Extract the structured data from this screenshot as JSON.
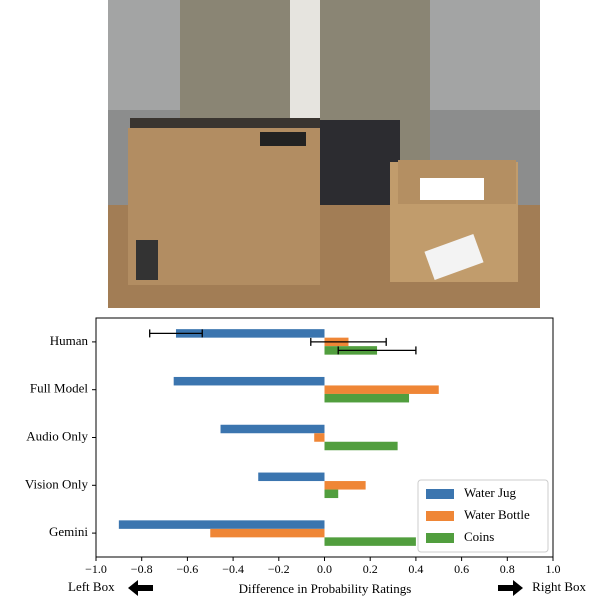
{
  "chart_data": {
    "type": "hbar",
    "categories": [
      "Human",
      "Full Model",
      "Audio Only",
      "Vision Only",
      "Gemini"
    ],
    "series": [
      {
        "name": "Water Jug",
        "color": "#3b75af",
        "values": [
          -0.65,
          -0.66,
          -0.455,
          -0.29,
          -0.9
        ],
        "errors": [
          0.115,
          null,
          null,
          null,
          null
        ]
      },
      {
        "name": "Water Bottle",
        "color": "#ef8636",
        "values": [
          0.105,
          0.5,
          -0.045,
          0.18,
          -0.5
        ],
        "errors": [
          0.165,
          null,
          null,
          null,
          null
        ]
      },
      {
        "name": "Coins",
        "color": "#519e3e",
        "values": [
          0.23,
          0.37,
          0.32,
          0.06,
          0.4
        ],
        "errors": [
          0.17,
          null,
          null,
          null,
          null
        ]
      }
    ],
    "xlim": [
      -1,
      1
    ],
    "xticks": [
      {
        "value": -1,
        "label": "−1.0"
      },
      {
        "value": -0.8,
        "label": "−0.8"
      },
      {
        "value": -0.6,
        "label": "−0.6"
      },
      {
        "value": -0.4,
        "label": "−0.4"
      },
      {
        "value": -0.2,
        "label": "−0.2"
      },
      {
        "value": 0,
        "label": "0.0"
      },
      0.2,
      0.4,
      0.6,
      0.8,
      {
        "value": 1,
        "label": "1.0"
      }
    ],
    "xlabel": "Difference in Probability Ratings",
    "annotations": [
      "Left Box",
      "Right Box"
    ],
    "legend": "lower right"
  }
}
